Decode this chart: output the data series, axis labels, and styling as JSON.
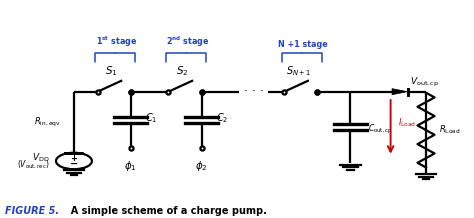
{
  "fig_width": 4.74,
  "fig_height": 2.18,
  "dpi": 100,
  "bg_color": "#ffffff",
  "line_color": "#000000",
  "blue_color": "#2244bb",
  "red_color": "#cc0000",
  "caption_bold": "FIGURE 5.",
  "caption_normal": "  A simple scheme of a charge pump."
}
